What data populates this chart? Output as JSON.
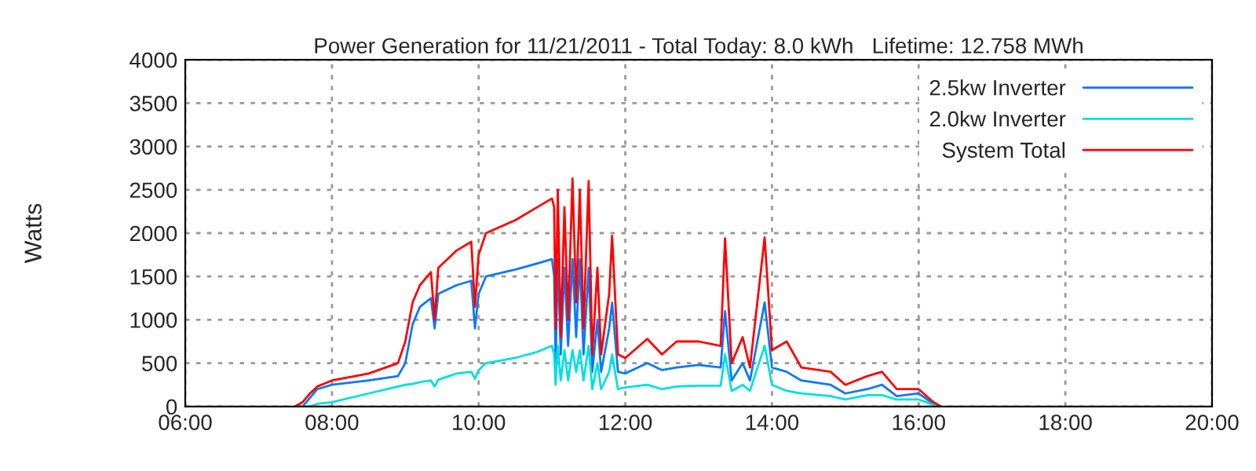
{
  "chart_data": {
    "type": "line",
    "title": "Power Generation for 11/21/2011 - Total Today: 8.0 kWh   Lifetime: 12.758 MWh",
    "ylabel": "Watts",
    "x": [
      7.5,
      7.6,
      7.7,
      7.8,
      8.0,
      8.5,
      8.9,
      9.0,
      9.1,
      9.2,
      9.35,
      9.4,
      9.45,
      9.7,
      9.9,
      9.95,
      10.0,
      10.1,
      10.5,
      10.8,
      11.0,
      11.03,
      11.05,
      11.08,
      11.12,
      11.17,
      11.22,
      11.28,
      11.33,
      11.38,
      11.43,
      11.5,
      11.55,
      11.62,
      11.67,
      11.78,
      11.82,
      11.9,
      12.0,
      12.3,
      12.5,
      12.7,
      13.0,
      13.3,
      13.36,
      13.45,
      13.6,
      13.7,
      13.9,
      14.0,
      14.2,
      14.4,
      14.8,
      15.0,
      15.3,
      15.5,
      15.7,
      16.0,
      16.2,
      16.3
    ],
    "series": [
      {
        "name": "2.5kw Inverter",
        "color": "#0a78ff",
        "values": [
          0,
          0,
          100,
          200,
          250,
          300,
          350,
          500,
          950,
          1150,
          1250,
          900,
          1300,
          1400,
          1450,
          900,
          1300,
          1500,
          1580,
          1650,
          1700,
          1500,
          500,
          1700,
          600,
          1600,
          700,
          1700,
          800,
          1700,
          600,
          1600,
          400,
          1000,
          400,
          900,
          1200,
          400,
          380,
          500,
          420,
          450,
          480,
          450,
          1100,
          300,
          500,
          300,
          1200,
          450,
          400,
          300,
          250,
          150,
          200,
          250,
          120,
          150,
          30,
          0
        ]
      },
      {
        "name": "2.0kw Inverter",
        "color": "#00e0e0",
        "values": [
          0,
          0,
          0,
          30,
          50,
          150,
          230,
          250,
          260,
          280,
          300,
          230,
          310,
          380,
          400,
          320,
          420,
          500,
          560,
          630,
          700,
          600,
          250,
          700,
          300,
          650,
          300,
          650,
          400,
          650,
          300,
          700,
          200,
          500,
          200,
          400,
          600,
          200,
          220,
          250,
          200,
          230,
          240,
          240,
          600,
          180,
          250,
          180,
          700,
          250,
          180,
          150,
          120,
          80,
          130,
          130,
          80,
          80,
          20,
          0
        ]
      },
      {
        "name": "System Total",
        "color": "#ff0000",
        "values": [
          0,
          50,
          150,
          230,
          300,
          380,
          500,
          750,
          1200,
          1400,
          1550,
          1000,
          1600,
          1800,
          1900,
          1150,
          1750,
          2000,
          2150,
          2300,
          2400,
          2300,
          900,
          2500,
          800,
          2300,
          1000,
          2630,
          1200,
          2500,
          900,
          2600,
          600,
          1600,
          600,
          1300,
          1970,
          600,
          560,
          780,
          600,
          750,
          750,
          700,
          1940,
          500,
          800,
          450,
          1950,
          650,
          750,
          450,
          400,
          250,
          350,
          400,
          200,
          200,
          50,
          0
        ]
      }
    ],
    "xlim": [
      6,
      20
    ],
    "xticks": [
      {
        "value": 6,
        "label": "06:00"
      },
      {
        "value": 8,
        "label": "08:00"
      },
      {
        "value": 10,
        "label": "10:00"
      },
      {
        "value": 12,
        "label": "12:00"
      },
      {
        "value": 14,
        "label": "14:00"
      },
      {
        "value": 16,
        "label": "16:00"
      },
      {
        "value": 18,
        "label": "18:00"
      },
      {
        "value": 20,
        "label": "20:00"
      }
    ],
    "ylim": [
      0,
      4000
    ],
    "yticks": [
      0,
      500,
      1000,
      1500,
      2000,
      2500,
      3000,
      3500,
      4000
    ],
    "grid": true,
    "legend": "top right",
    "line_style": "solid"
  }
}
